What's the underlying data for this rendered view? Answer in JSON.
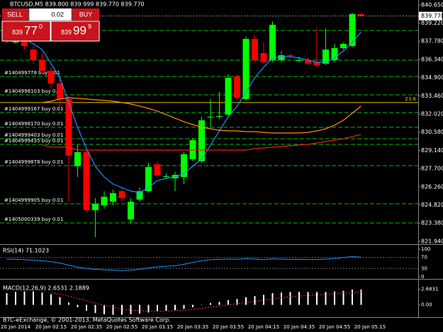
{
  "window": {
    "symbol_line": "BTCUSD,M5  839.800 839.999 839.770 839.770",
    "copyright": "BTC-eExchange, © 2001-2013, MetaQuotes Software Corp."
  },
  "trade_panel": {
    "sell": "SELL",
    "buy": "BUY",
    "lots": "0.02",
    "sell_price": {
      "prefix": "839",
      "big": "77",
      "sup": "0"
    },
    "buy_price": {
      "prefix": "839",
      "big": "99",
      "sup": "9"
    }
  },
  "chart_data": [
    {
      "type": "candlestick",
      "categories": [
        null,
        "20 Jan 2014",
        null,
        null,
        null,
        "20 Jan 02:15",
        null,
        null,
        null,
        "20 Jan 02:35",
        null,
        null,
        null,
        "20 Jan 02:55",
        null,
        null,
        null,
        "20 Jan 03:15",
        null,
        null,
        null,
        "20 Jan 03:35",
        null,
        null,
        null,
        "20 Jan 03:55",
        null,
        null,
        null,
        "20 Jan 04:15",
        null,
        null,
        null,
        "20 Jan 04:35",
        null,
        null,
        null,
        "20 Jan 04:55",
        null,
        null,
        null,
        "20 Jan 05:15"
      ],
      "open": [
        837.85,
        837.68,
        837.96,
        837.12,
        836.28,
        835.44,
        834.43,
        833.2,
        827.88,
        829.0,
        824.4,
        824.79,
        825.07,
        825.91,
        823.67,
        825.24,
        825.91,
        828.04,
        827.03,
        826.92,
        827.03,
        828.44,
        828.27,
        831.74,
        831.8,
        831.97,
        834.99,
        833.2,
        837.96,
        836.84,
        836.28,
        836.28,
        836.67,
        836.22,
        836.28,
        836.11,
        836.0,
        836.28,
        837.23,
        837.4,
        839.92,
        null
      ],
      "high": [
        838.8,
        838.52,
        838.24,
        837.4,
        836.84,
        835.72,
        834.88,
        833.48,
        829.56,
        829.28,
        825.35,
        825.91,
        826.03,
        826.19,
        825.35,
        826.19,
        828.16,
        828.27,
        827.32,
        827.43,
        829.0,
        830.12,
        831.8,
        833.2,
        833.76,
        835.16,
        835.16,
        838.13,
        838.24,
        837.68,
        839.36,
        837.01,
        836.78,
        836.56,
        836.45,
        838.8,
        838.8,
        837.57,
        837.68,
        840.03,
        840.03,
        null
      ],
      "low": [
        837.68,
        837.57,
        837.12,
        836.0,
        835.16,
        834.04,
        832.64,
        825.07,
        827.03,
        824.23,
        822.27,
        824.51,
        824.79,
        825.07,
        823.39,
        825.07,
        825.8,
        827.03,
        826.92,
        825.91,
        826.47,
        828.27,
        828.16,
        830.96,
        831.63,
        831.8,
        833.09,
        833.09,
        836.11,
        836.0,
        836.11,
        836.11,
        836.45,
        836.11,
        835.89,
        835.72,
        835.89,
        836.11,
        837.12,
        837.29,
        839.81,
        null
      ],
      "close": [
        838.24,
        838.13,
        837.4,
        836.28,
        835.44,
        834.43,
        833.2,
        828.72,
        829.0,
        824.4,
        824.91,
        825.47,
        825.75,
        825.35,
        825.07,
        825.91,
        827.82,
        827.15,
        827.09,
        827.2,
        828.83,
        829.95,
        831.52,
        831.8,
        831.85,
        834.88,
        833.31,
        837.96,
        836.28,
        836.11,
        839.08,
        836.67,
        836.62,
        836.28,
        836.0,
        835.89,
        837.12,
        837.23,
        837.57,
        839.92,
        839.77,
        null
      ],
      "up_color": "#00ff00",
      "down_color": "#ff0000",
      "ylim": [
        821.71,
        841.04
      ],
      "yticks": [
        {
          "value": 840.65,
          "label": "840.650"
        },
        {
          "value": 839.22,
          "label": "839.220"
        },
        {
          "value": 837.78,
          "label": "837.780"
        },
        {
          "value": 836.34,
          "label": "836.340"
        },
        {
          "value": 834.9,
          "label": "834.900"
        },
        {
          "value": 833.46,
          "label": "833.460"
        },
        {
          "value": 832.02,
          "label": "832.020"
        },
        {
          "value": 830.58,
          "label": "830.580"
        },
        {
          "value": 829.14,
          "label": "829.140"
        },
        {
          "value": 827.7,
          "label": "827.700"
        },
        {
          "value": 826.26,
          "label": "826.260"
        },
        {
          "value": 824.82,
          "label": "824.820"
        },
        {
          "value": 823.38,
          "label": "823.380"
        },
        {
          "value": 821.94,
          "label": "821.940"
        }
      ],
      "overlays": [
        {
          "color": "#1e90ff",
          "values": [
            null,
            null,
            837.96,
            837.57,
            837.12,
            836.0,
            834.88,
            832.92,
            830.96,
            829.28,
            827.88,
            827.03,
            826.47,
            826.19,
            825.91,
            825.8,
            826.19,
            826.75,
            826.92,
            827.03,
            827.32,
            827.88,
            828.44,
            829.56,
            830.68,
            831.8,
            832.64,
            833.76,
            834.88,
            835.72,
            836.45,
            836.56,
            836.56,
            836.45,
            836.28,
            836.11,
            836.11,
            836.45,
            837.01,
            837.68,
            838.52,
            null
          ]
        },
        {
          "color": "#ff8c1a",
          "values": [
            null,
            null,
            null,
            null,
            832.92,
            833.03,
            833.2,
            833.31,
            833.25,
            833.2,
            833.14,
            833.09,
            833.03,
            832.92,
            832.81,
            832.64,
            832.47,
            832.25,
            831.97,
            831.69,
            831.41,
            831.18,
            830.96,
            830.85,
            830.73,
            830.68,
            830.68,
            830.62,
            830.62,
            830.56,
            830.51,
            830.51,
            830.51,
            830.51,
            830.56,
            830.68,
            830.85,
            831.13,
            831.52,
            832.08,
            832.64,
            null
          ]
        },
        {
          "color": "#e8201a",
          "values": [
            null,
            null,
            null,
            null,
            829.56,
            829.39,
            829.39,
            829.39,
            829.16,
            829.16,
            829.16,
            829.16,
            829.16,
            829.16,
            829.16,
            829.16,
            829.16,
            829.16,
            829.16,
            829.16,
            829.16,
            829.16,
            829.16,
            829.16,
            829.16,
            829.16,
            829.16,
            829.16,
            829.28,
            829.33,
            829.39,
            829.44,
            829.5,
            829.56,
            829.61,
            829.72,
            829.84,
            829.95,
            830.06,
            830.23,
            830.4,
            null
          ]
        }
      ],
      "order_lines": [
        {
          "label": "#140499778 buy 0.01",
          "value": 834.99
        },
        {
          "label": "#1404998103 buy 0.01",
          "value": 833.53
        },
        {
          "label": "#1404999167 buy 0.01",
          "value": 832.13
        },
        {
          "label": "#1404998170 buy 0.01",
          "value": 830.96
        },
        {
          "label": "#1404999403 buy 0.01",
          "value": 830.06
        },
        {
          "label": "#1404999435 buy 0.01",
          "value": 829.61
        },
        {
          "label": "#1404999878 buy 0.01",
          "value": 827.93
        },
        {
          "label": "#1404999905 buy 0.01",
          "value": 824.91
        },
        {
          "label": "#1405000339 buy 0.01",
          "value": 823.39
        }
      ],
      "levels": [
        838.63,
        836.28
      ],
      "order_color": "#00c000",
      "fib": {
        "label": "23.6",
        "value": 832.92,
        "color": "#e6c200"
      },
      "current_price": {
        "value": 839.77,
        "label": "839.770"
      }
    },
    {
      "type": "line",
      "title": "RSI(14) 71.1023",
      "color": "#1e90ff",
      "values": [
        64,
        63,
        62,
        60,
        58,
        55,
        50,
        42,
        35,
        30,
        27,
        25,
        24,
        22,
        24,
        27,
        32,
        36,
        38,
        40,
        45,
        52,
        58,
        62,
        63,
        64,
        63,
        66,
        64,
        62,
        65,
        64,
        63,
        63,
        62,
        62,
        64,
        66,
        70,
        73,
        71.1023,
        null
      ],
      "ylim": [
        0,
        100
      ],
      "yticks": [
        100,
        70,
        30,
        0
      ]
    },
    {
      "type": "bar",
      "title": "MACD(12,26,9) 2.6531 2.1889",
      "color": "#ffffff",
      "values": [
        2.0,
        2.2,
        2.3,
        2.3,
        2.1,
        1.8,
        1.3,
        0.4,
        -0.4,
        -1.0,
        -1.4,
        -1.6,
        -1.7,
        -1.7,
        -1.6,
        -1.5,
        -1.3,
        -1.1,
        -1.0,
        -0.9,
        -0.7,
        -0.4,
        0.0,
        0.3,
        0.5,
        0.8,
        1.0,
        1.3,
        1.5,
        1.7,
        2.0,
        2.1,
        2.2,
        2.2,
        2.2,
        2.2,
        2.2,
        2.3,
        2.4,
        2.6,
        2.6,
        null
      ],
      "signal": {
        "color": "#ff3030",
        "values": [
          null,
          null,
          null,
          null,
          null,
          2.0,
          1.8,
          1.5,
          1.1,
          0.7,
          0.3,
          -0.1,
          -0.4,
          -0.7,
          -0.9,
          -1.0,
          -1.1,
          -1.1,
          -1.1,
          -1.0,
          -0.9,
          -0.8,
          -0.6,
          -0.4,
          -0.2,
          0.0,
          0.2,
          0.4,
          0.6,
          0.8,
          1.0,
          1.2,
          1.4,
          1.5,
          1.6,
          1.7,
          1.8,
          1.9,
          2.0,
          2.1,
          2.2,
          null
        ]
      },
      "ylim": [
        -1.98,
        2.98
      ],
      "yticks": [
        {
          "value": 2.6831,
          "label": "2.6831"
        },
        {
          "value": 0,
          "label": "0.00"
        }
      ]
    }
  ]
}
